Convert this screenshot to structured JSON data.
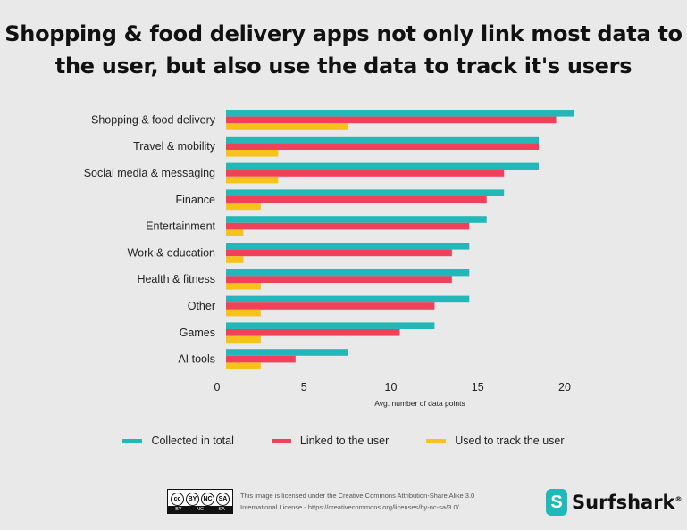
{
  "title": "Shopping & food delivery apps not only link most data to the user, but also use the data to track it's users",
  "legend": [
    {
      "label": "Collected in total",
      "color": "#23b8b8"
    },
    {
      "label": "Linked to the user",
      "color": "#f0405a"
    },
    {
      "label": "Used to track the user",
      "color": "#f7c21b"
    }
  ],
  "footer": {
    "cc_badge": {
      "symbols": [
        "cc",
        "BY",
        "NC",
        "SA"
      ],
      "labels": [
        "BY",
        "NC",
        "SA"
      ]
    },
    "license_text": "This image is licensed under the Creative Commons Attribution-Share Alike 3.0 International License - https://creativecommons.org/licenses/by-nc-sa/3.0/",
    "brand": "Surfshark",
    "brand_mark": "®",
    "brand_logo_glyph": "S"
  },
  "chart_data": {
    "type": "bar",
    "orientation": "horizontal",
    "categories": [
      "Shopping & food delivery",
      "Travel & mobility",
      "Social media & messaging",
      "Finance",
      "Entertainment",
      "Work & education",
      "Health & fitness",
      "Other",
      "Games",
      "AI tools"
    ],
    "series": [
      {
        "name": "Collected in total",
        "color": "#23b8b8",
        "values": [
          20,
          18,
          18,
          16,
          15,
          14,
          14,
          14,
          12,
          7
        ]
      },
      {
        "name": "Linked to the user",
        "color": "#f0405a",
        "values": [
          19,
          18,
          16,
          15,
          14,
          13,
          13,
          12,
          10,
          4
        ]
      },
      {
        "name": "Used to track the user",
        "color": "#f7c21b",
        "values": [
          7,
          3,
          3,
          2,
          1,
          1,
          2,
          2,
          2,
          2
        ]
      }
    ],
    "xlabel": "Avg. number of data points",
    "xticks": [
      0,
      5,
      10,
      15,
      20
    ],
    "xlim": [
      0,
      21
    ],
    "grid": false,
    "legend_position": "bottom"
  }
}
